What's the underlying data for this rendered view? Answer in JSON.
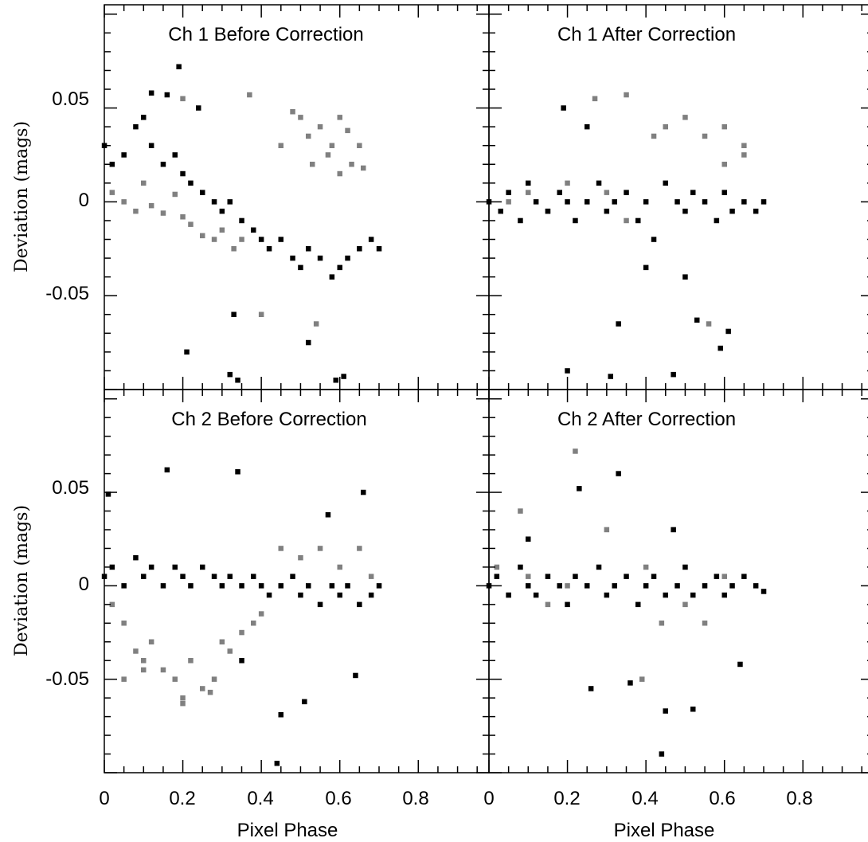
{
  "chart_data": [
    {
      "type": "scatter",
      "title": "Ch 1 Before Correction",
      "ylabel": "Deviation (mags)",
      "xlabel": "",
      "xlim": [
        0,
        0.98
      ],
      "ylim": [
        -0.1,
        0.105
      ],
      "xticks": [
        0,
        0.2,
        0.4,
        0.6,
        0.8
      ],
      "yticks": [
        -0.05,
        0,
        0.05
      ],
      "ytick_labels": [
        "-0.05",
        "0",
        "0.05"
      ],
      "series": [
        {
          "color": "#808080",
          "points": [
            [
              0.02,
              0.005
            ],
            [
              0.05,
              0.0
            ],
            [
              0.08,
              -0.005
            ],
            [
              0.1,
              0.01
            ],
            [
              0.12,
              -0.002
            ],
            [
              0.15,
              -0.006
            ],
            [
              0.18,
              0.004
            ],
            [
              0.2,
              -0.008
            ],
            [
              0.22,
              -0.012
            ],
            [
              0.25,
              -0.018
            ],
            [
              0.28,
              -0.02
            ],
            [
              0.3,
              -0.015
            ],
            [
              0.33,
              -0.025
            ],
            [
              0.35,
              -0.02
            ],
            [
              0.37,
              0.057
            ],
            [
              0.5,
              0.045
            ],
            [
              0.52,
              0.035
            ],
            [
              0.55,
              0.04
            ],
            [
              0.58,
              0.03
            ],
            [
              0.6,
              0.045
            ],
            [
              0.62,
              0.038
            ],
            [
              0.65,
              0.03
            ],
            [
              0.53,
              0.02
            ],
            [
              0.57,
              0.025
            ],
            [
              0.6,
              0.015
            ],
            [
              0.63,
              0.02
            ],
            [
              0.66,
              0.018
            ],
            [
              0.54,
              -0.065
            ],
            [
              0.4,
              -0.06
            ],
            [
              0.2,
              0.055
            ],
            [
              0.48,
              0.048
            ],
            [
              0.45,
              0.03
            ]
          ]
        },
        {
          "color": "#000000",
          "points": [
            [
              0.0,
              0.03
            ],
            [
              0.02,
              0.02
            ],
            [
              0.05,
              0.025
            ],
            [
              0.08,
              0.04
            ],
            [
              0.1,
              0.045
            ],
            [
              0.12,
              0.03
            ],
            [
              0.15,
              0.02
            ],
            [
              0.18,
              0.025
            ],
            [
              0.2,
              0.015
            ],
            [
              0.22,
              0.01
            ],
            [
              0.25,
              0.005
            ],
            [
              0.28,
              0.0
            ],
            [
              0.3,
              -0.005
            ],
            [
              0.32,
              0.0
            ],
            [
              0.35,
              -0.01
            ],
            [
              0.38,
              -0.015
            ],
            [
              0.4,
              -0.02
            ],
            [
              0.42,
              -0.025
            ],
            [
              0.45,
              -0.02
            ],
            [
              0.48,
              -0.03
            ],
            [
              0.5,
              -0.035
            ],
            [
              0.52,
              -0.025
            ],
            [
              0.55,
              -0.03
            ],
            [
              0.58,
              -0.04
            ],
            [
              0.6,
              -0.035
            ],
            [
              0.62,
              -0.03
            ],
            [
              0.65,
              -0.025
            ],
            [
              0.68,
              -0.02
            ],
            [
              0.7,
              -0.025
            ],
            [
              0.19,
              0.072
            ],
            [
              0.21,
              -0.08
            ],
            [
              0.33,
              -0.06
            ],
            [
              0.32,
              -0.092
            ],
            [
              0.34,
              -0.095
            ],
            [
              0.52,
              -0.075
            ],
            [
              0.59,
              -0.095
            ],
            [
              0.61,
              -0.093
            ],
            [
              0.12,
              0.058
            ],
            [
              0.16,
              0.057
            ],
            [
              0.24,
              0.05
            ]
          ]
        }
      ]
    },
    {
      "type": "scatter",
      "title": "Ch 1 After Correction",
      "ylabel": "",
      "xlabel": "",
      "xlim": [
        0,
        0.98
      ],
      "ylim": [
        -0.1,
        0.105
      ],
      "xticks": [
        0,
        0.2,
        0.4,
        0.6,
        0.8
      ],
      "yticks": [
        -0.05,
        0,
        0.05
      ],
      "series": [
        {
          "color": "#808080",
          "points": [
            [
              0.05,
              0.0
            ],
            [
              0.1,
              0.005
            ],
            [
              0.15,
              -0.005
            ],
            [
              0.2,
              0.01
            ],
            [
              0.25,
              0.0
            ],
            [
              0.3,
              0.005
            ],
            [
              0.35,
              -0.01
            ],
            [
              0.45,
              0.04
            ],
            [
              0.5,
              0.045
            ],
            [
              0.55,
              0.035
            ],
            [
              0.6,
              0.04
            ],
            [
              0.65,
              0.03
            ],
            [
              0.42,
              0.035
            ],
            [
              0.35,
              0.057
            ],
            [
              0.27,
              0.055
            ],
            [
              0.56,
              -0.065
            ],
            [
              0.6,
              0.02
            ],
            [
              0.65,
              0.025
            ]
          ]
        },
        {
          "color": "#000000",
          "points": [
            [
              0.0,
              0.0
            ],
            [
              0.03,
              -0.005
            ],
            [
              0.05,
              0.005
            ],
            [
              0.08,
              -0.01
            ],
            [
              0.1,
              0.01
            ],
            [
              0.12,
              0.0
            ],
            [
              0.15,
              -0.005
            ],
            [
              0.18,
              0.005
            ],
            [
              0.2,
              0.0
            ],
            [
              0.22,
              -0.01
            ],
            [
              0.25,
              0.0
            ],
            [
              0.28,
              0.01
            ],
            [
              0.3,
              -0.005
            ],
            [
              0.32,
              0.0
            ],
            [
              0.35,
              0.005
            ],
            [
              0.38,
              -0.01
            ],
            [
              0.4,
              0.0
            ],
            [
              0.42,
              -0.02
            ],
            [
              0.45,
              0.01
            ],
            [
              0.48,
              0.0
            ],
            [
              0.5,
              -0.005
            ],
            [
              0.52,
              0.005
            ],
            [
              0.55,
              0.0
            ],
            [
              0.58,
              -0.01
            ],
            [
              0.6,
              0.005
            ],
            [
              0.62,
              -0.005
            ],
            [
              0.65,
              0.0
            ],
            [
              0.68,
              -0.005
            ],
            [
              0.7,
              0.0
            ],
            [
              0.19,
              0.05
            ],
            [
              0.33,
              -0.065
            ],
            [
              0.2,
              -0.09
            ],
            [
              0.31,
              -0.093
            ],
            [
              0.47,
              -0.092
            ],
            [
              0.53,
              -0.063
            ],
            [
              0.59,
              -0.078
            ],
            [
              0.61,
              -0.069
            ],
            [
              0.25,
              0.04
            ],
            [
              0.5,
              -0.04
            ],
            [
              0.4,
              -0.035
            ]
          ]
        }
      ]
    },
    {
      "type": "scatter",
      "title": "Ch 2 Before Correction",
      "ylabel": "Deviation (mags)",
      "xlabel": "Pixel Phase",
      "xlim": [
        0,
        0.98
      ],
      "ylim": [
        -0.1,
        0.105
      ],
      "xticks": [
        0,
        0.2,
        0.4,
        0.6,
        0.8
      ],
      "xtick_labels": [
        "0",
        "0.2",
        "0.4",
        "0.6",
        "0.8"
      ],
      "yticks": [
        -0.05,
        0,
        0.05
      ],
      "ytick_labels": [
        "-0.05",
        "0",
        "0.05"
      ],
      "series": [
        {
          "color": "#808080",
          "points": [
            [
              0.02,
              -0.01
            ],
            [
              0.05,
              -0.02
            ],
            [
              0.08,
              -0.035
            ],
            [
              0.1,
              -0.04
            ],
            [
              0.12,
              -0.03
            ],
            [
              0.15,
              -0.045
            ],
            [
              0.18,
              -0.05
            ],
            [
              0.2,
              -0.06
            ],
            [
              0.22,
              -0.04
            ],
            [
              0.25,
              -0.055
            ],
            [
              0.28,
              -0.05
            ],
            [
              0.3,
              -0.03
            ],
            [
              0.32,
              -0.035
            ],
            [
              0.35,
              -0.025
            ],
            [
              0.38,
              -0.02
            ],
            [
              0.4,
              -0.015
            ],
            [
              0.05,
              -0.05
            ],
            [
              0.1,
              -0.045
            ],
            [
              0.2,
              -0.063
            ],
            [
              0.27,
              -0.057
            ],
            [
              0.45,
              0.02
            ],
            [
              0.5,
              0.015
            ],
            [
              0.55,
              0.02
            ],
            [
              0.6,
              0.01
            ],
            [
              0.65,
              0.02
            ],
            [
              0.68,
              0.005
            ]
          ]
        },
        {
          "color": "#000000",
          "points": [
            [
              0.0,
              0.005
            ],
            [
              0.02,
              0.01
            ],
            [
              0.05,
              0.0
            ],
            [
              0.08,
              0.015
            ],
            [
              0.1,
              0.005
            ],
            [
              0.12,
              0.01
            ],
            [
              0.15,
              0.0
            ],
            [
              0.18,
              0.01
            ],
            [
              0.2,
              0.005
            ],
            [
              0.22,
              0.0
            ],
            [
              0.25,
              0.01
            ],
            [
              0.28,
              0.005
            ],
            [
              0.3,
              0.0
            ],
            [
              0.32,
              0.005
            ],
            [
              0.35,
              0.0
            ],
            [
              0.38,
              0.005
            ],
            [
              0.4,
              0.0
            ],
            [
              0.42,
              -0.005
            ],
            [
              0.45,
              0.0
            ],
            [
              0.48,
              0.005
            ],
            [
              0.5,
              -0.005
            ],
            [
              0.52,
              0.0
            ],
            [
              0.55,
              -0.01
            ],
            [
              0.58,
              0.0
            ],
            [
              0.6,
              -0.005
            ],
            [
              0.62,
              0.0
            ],
            [
              0.65,
              -0.01
            ],
            [
              0.68,
              -0.005
            ],
            [
              0.7,
              0.0
            ],
            [
              0.16,
              0.062
            ],
            [
              0.34,
              0.061
            ],
            [
              0.66,
              0.05
            ],
            [
              0.45,
              -0.069
            ],
            [
              0.51,
              -0.062
            ],
            [
              0.44,
              -0.095
            ],
            [
              0.01,
              0.049
            ],
            [
              0.64,
              -0.048
            ],
            [
              0.57,
              0.038
            ],
            [
              0.35,
              -0.04
            ]
          ]
        }
      ]
    },
    {
      "type": "scatter",
      "title": "Ch 2 After Correction",
      "ylabel": "",
      "xlabel": "Pixel Phase",
      "xlim": [
        0,
        0.98
      ],
      "ylim": [
        -0.1,
        0.105
      ],
      "xticks": [
        0,
        0.2,
        0.4,
        0.6,
        0.8
      ],
      "xtick_labels": [
        "0",
        "0.2",
        "0.4",
        "0.6",
        "0.8"
      ],
      "yticks": [
        -0.05,
        0,
        0.05
      ],
      "series": [
        {
          "color": "#808080",
          "points": [
            [
              0.02,
              0.01
            ],
            [
              0.05,
              -0.005
            ],
            [
              0.1,
              0.005
            ],
            [
              0.15,
              -0.01
            ],
            [
              0.2,
              0.0
            ],
            [
              0.22,
              0.072
            ],
            [
              0.08,
              0.04
            ],
            [
              0.3,
              0.03
            ],
            [
              0.4,
              0.01
            ],
            [
              0.5,
              -0.01
            ],
            [
              0.55,
              -0.02
            ],
            [
              0.6,
              0.005
            ],
            [
              0.39,
              -0.05
            ],
            [
              0.44,
              -0.02
            ]
          ]
        },
        {
          "color": "#000000",
          "points": [
            [
              0.0,
              0.0
            ],
            [
              0.02,
              0.005
            ],
            [
              0.05,
              -0.005
            ],
            [
              0.08,
              0.01
            ],
            [
              0.1,
              0.0
            ],
            [
              0.12,
              -0.005
            ],
            [
              0.15,
              0.005
            ],
            [
              0.18,
              0.0
            ],
            [
              0.2,
              -0.01
            ],
            [
              0.22,
              0.005
            ],
            [
              0.25,
              0.0
            ],
            [
              0.28,
              0.01
            ],
            [
              0.3,
              -0.005
            ],
            [
              0.32,
              0.0
            ],
            [
              0.35,
              0.005
            ],
            [
              0.38,
              -0.01
            ],
            [
              0.4,
              0.0
            ],
            [
              0.42,
              0.005
            ],
            [
              0.45,
              -0.005
            ],
            [
              0.48,
              0.0
            ],
            [
              0.5,
              0.01
            ],
            [
              0.52,
              -0.005
            ],
            [
              0.55,
              0.0
            ],
            [
              0.58,
              0.005
            ],
            [
              0.6,
              -0.005
            ],
            [
              0.62,
              0.0
            ],
            [
              0.65,
              0.005
            ],
            [
              0.68,
              0.0
            ],
            [
              0.7,
              -0.003
            ],
            [
              0.33,
              0.06
            ],
            [
              0.23,
              0.052
            ],
            [
              0.45,
              -0.067
            ],
            [
              0.52,
              -0.066
            ],
            [
              0.44,
              -0.09
            ],
            [
              0.26,
              -0.055
            ],
            [
              0.36,
              -0.052
            ],
            [
              0.64,
              -0.042
            ],
            [
              0.1,
              0.025
            ],
            [
              0.47,
              0.03
            ]
          ]
        }
      ]
    }
  ]
}
